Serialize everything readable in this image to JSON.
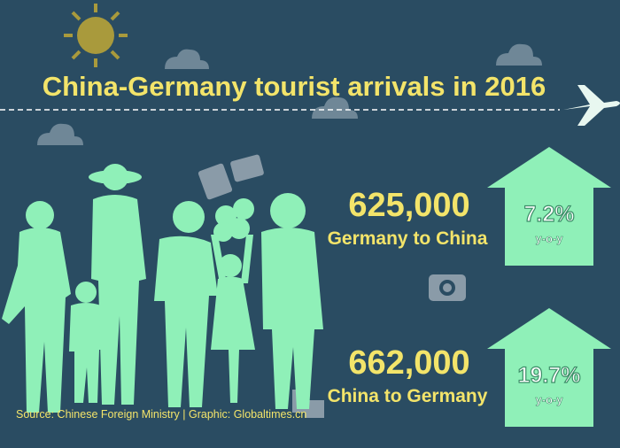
{
  "title": "China-Germany tourist arrivals in 2016",
  "stats": [
    {
      "value": "625,000",
      "label": "Germany to China",
      "growth": "7.2%",
      "growth_note": "y-o-y"
    },
    {
      "value": "662,000",
      "label": "China to Germany",
      "growth": "19.7%",
      "growth_note": "y-o-y"
    }
  ],
  "source": "Source: Chinese Foreign Ministry | Graphic: Globaltimes.cn"
}
